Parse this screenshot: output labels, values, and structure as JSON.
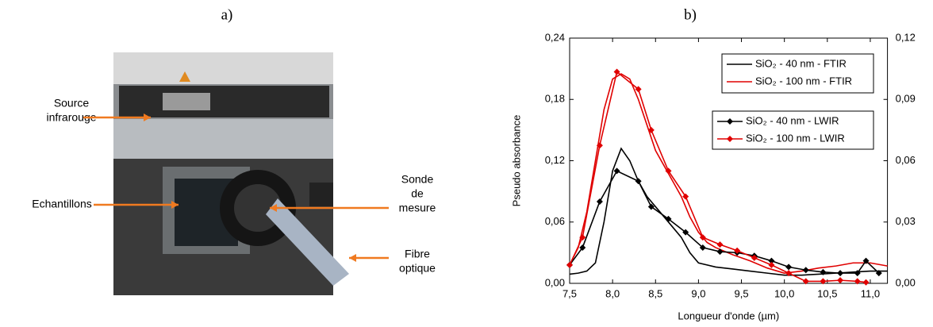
{
  "panel_a": {
    "label": "a)",
    "annotations": [
      {
        "lines": [
          "Source",
          "infrarouge"
        ]
      },
      {
        "lines": [
          "Echantillons"
        ]
      },
      {
        "lines": [
          "Sonde",
          "de",
          "mesure"
        ]
      },
      {
        "lines": [
          "Fibre",
          "optique"
        ]
      }
    ]
  },
  "panel_b": {
    "label": "b)"
  },
  "chart_data": {
    "type": "line",
    "x_label": "Longueur d'onde (µm)",
    "y_label": "Pseudo absorbance",
    "xlim": [
      7.5,
      11.2
    ],
    "ylim": [
      0,
      0.24
    ],
    "y2lim": [
      0,
      0.12
    ],
    "xticks": [
      {
        "value": 7.5,
        "label": "7,5"
      },
      {
        "value": 8.0,
        "label": "8,0"
      },
      {
        "value": 8.5,
        "label": "8,5"
      },
      {
        "value": 9.0,
        "label": "9,0"
      },
      {
        "value": 9.5,
        "label": "9,5"
      },
      {
        "value": 10.0,
        "label": "10,0"
      },
      {
        "value": 10.5,
        "label": "10,5"
      },
      {
        "value": 11.0,
        "label": "11,0"
      }
    ],
    "yticks": [
      {
        "value": 0,
        "label": "0,00"
      },
      {
        "value": 0.06,
        "label": "0,06"
      },
      {
        "value": 0.12,
        "label": "0,12"
      },
      {
        "value": 0.18,
        "label": "0,18"
      },
      {
        "value": 0.24,
        "label": "0,24"
      }
    ],
    "y2ticks": [
      {
        "value": 0,
        "label": "0,00"
      },
      {
        "value": 0.03,
        "label": "0,03"
      },
      {
        "value": 0.06,
        "label": "0,06"
      },
      {
        "value": 0.09,
        "label": "0,09"
      },
      {
        "value": 0.12,
        "label": "0,12"
      }
    ],
    "series": [
      {
        "name": "SiO₂ - 40 nm - FTIR",
        "color": "#000000",
        "axis": "y",
        "marker": "none",
        "x": [
          7.5,
          7.6,
          7.7,
          7.8,
          7.9,
          8.0,
          8.1,
          8.2,
          8.3,
          8.4,
          8.5,
          8.6,
          8.7,
          8.8,
          8.9,
          9.0,
          9.2,
          9.4,
          9.6,
          9.8,
          10.0,
          10.2,
          10.4,
          10.6,
          10.8,
          11.0,
          11.2
        ],
        "values": [
          0.009,
          0.01,
          0.012,
          0.02,
          0.06,
          0.11,
          0.132,
          0.12,
          0.1,
          0.085,
          0.075,
          0.065,
          0.055,
          0.045,
          0.03,
          0.02,
          0.016,
          0.014,
          0.012,
          0.01,
          0.008,
          0.008,
          0.009,
          0.01,
          0.011,
          0.012,
          0.012
        ]
      },
      {
        "name": "SiO₂ - 100 nm - FTIR",
        "color": "#e00000",
        "axis": "y",
        "marker": "none",
        "x": [
          7.5,
          7.6,
          7.7,
          7.8,
          7.9,
          8.0,
          8.1,
          8.2,
          8.3,
          8.4,
          8.5,
          8.6,
          8.7,
          8.8,
          8.9,
          9.0,
          9.1,
          9.2,
          9.4,
          9.6,
          9.8,
          10.0,
          10.2,
          10.4,
          10.6,
          10.8,
          11.0,
          11.2
        ],
        "values": [
          0.018,
          0.035,
          0.07,
          0.12,
          0.17,
          0.2,
          0.205,
          0.2,
          0.18,
          0.155,
          0.13,
          0.115,
          0.1,
          0.085,
          0.065,
          0.05,
          0.04,
          0.035,
          0.028,
          0.022,
          0.015,
          0.01,
          0.012,
          0.015,
          0.017,
          0.02,
          0.02,
          0.017
        ]
      },
      {
        "name": "SiO₂ - 40 nm - LWIR",
        "color": "#000000",
        "axis": "y2",
        "marker": "diamond",
        "x": [
          7.5,
          7.65,
          7.85,
          8.05,
          8.3,
          8.45,
          8.65,
          8.85,
          9.05,
          9.25,
          9.45,
          9.65,
          9.85,
          10.05,
          10.25,
          10.45,
          10.65,
          10.85,
          10.95,
          11.1
        ],
        "values": [
          0.009,
          0.0175,
          0.04,
          0.055,
          0.05,
          0.0375,
          0.0315,
          0.025,
          0.0175,
          0.0155,
          0.015,
          0.0135,
          0.011,
          0.008,
          0.0065,
          0.0055,
          0.005,
          0.005,
          0.011,
          0.005
        ]
      },
      {
        "name": "SiO₂ - 100 nm - LWIR",
        "color": "#e00000",
        "axis": "y2",
        "marker": "diamond",
        "x": [
          7.5,
          7.65,
          7.85,
          8.05,
          8.3,
          8.45,
          8.65,
          8.85,
          9.05,
          9.25,
          9.45,
          9.65,
          9.85,
          10.05,
          10.25,
          10.45,
          10.65,
          10.85,
          10.95
        ],
        "values": [
          0.009,
          0.0225,
          0.0675,
          0.1035,
          0.095,
          0.075,
          0.055,
          0.0425,
          0.0225,
          0.019,
          0.016,
          0.0125,
          0.009,
          0.005,
          0.001,
          0.001,
          0.0015,
          0.001,
          0.0005
        ]
      }
    ]
  }
}
